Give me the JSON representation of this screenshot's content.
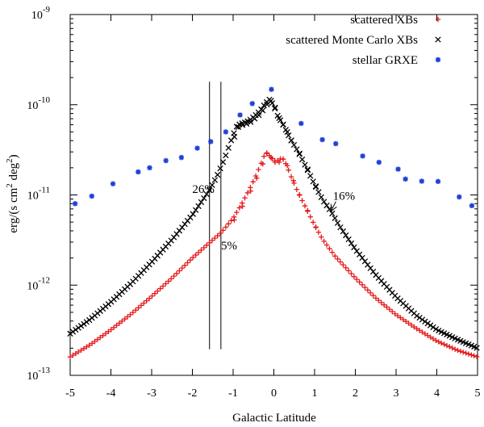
{
  "chart_data": {
    "type": "scatter",
    "title": "",
    "xlabel": "Galactic Latitude",
    "ylabel": "erg/(s cm^2 deg^2)",
    "ylabel_parts": {
      "main": "erg/(s cm",
      "sup1": "2",
      "mid": " deg",
      "sup2": "2",
      "end": ")"
    },
    "xlim": [
      -5,
      5
    ],
    "ylim": [
      1e-13,
      1e-09
    ],
    "yscale": "log",
    "x_ticks": [
      -5,
      -4,
      -3,
      -2,
      -1,
      0,
      1,
      2,
      3,
      4,
      5
    ],
    "x_tick_labels": [
      "-5",
      "-4",
      "-3",
      "-2",
      "-1",
      "0",
      "1",
      "2",
      "3",
      "4",
      "5"
    ],
    "y_ticks": [
      -13,
      -12,
      -11,
      -10,
      -9
    ],
    "y_tick_base": "10",
    "y_tick_exponents": [
      "-13",
      "-12",
      "-11",
      "-10",
      "-9"
    ],
    "legend_position": "top-right",
    "series": [
      {
        "name": "scattered XBs",
        "marker": "plus",
        "color": "#e41a1c",
        "x": [
          -5.0,
          -4.5,
          -4.0,
          -3.5,
          -3.0,
          -2.5,
          -2.0,
          -1.6,
          -1.3,
          -1.0,
          -0.8,
          -0.6,
          -0.45,
          -0.3,
          -0.2,
          -0.1,
          0.0,
          0.1,
          0.2,
          0.3,
          0.45,
          0.6,
          0.8,
          1.0,
          1.2,
          1.5,
          2.0,
          2.5,
          3.0,
          3.5,
          4.0,
          4.5,
          5.0
        ],
        "values": [
          1.6e-13,
          2.2e-13,
          3.2e-13,
          4.8e-13,
          7.5e-13,
          1.2e-12,
          2e-12,
          2.9e-12,
          3.8e-12,
          5.5e-12,
          7.8e-12,
          1.15e-11,
          1.6e-11,
          2.3e-11,
          3e-11,
          2.7e-11,
          2.4e-11,
          2.4e-11,
          2.6e-11,
          2.2e-11,
          1.5e-11,
          1.05e-11,
          7e-12,
          4.6e-12,
          3.2e-12,
          2.1e-12,
          1.2e-12,
          7.2e-13,
          4.7e-13,
          3.3e-13,
          2.4e-13,
          1.9e-13,
          1.6e-13
        ]
      },
      {
        "name": "scattered Monte Carlo XBs",
        "marker": "cross",
        "color": "#000000",
        "x": [
          -5.0,
          -4.5,
          -4.0,
          -3.5,
          -3.0,
          -2.5,
          -2.0,
          -1.6,
          -1.4,
          -1.2,
          -1.0,
          -0.9,
          -0.8,
          -0.7,
          -0.6,
          -0.5,
          -0.4,
          -0.3,
          -0.2,
          -0.1,
          0.0,
          0.1,
          0.2,
          0.3,
          0.4,
          0.6,
          0.8,
          1.0,
          1.2,
          1.4,
          1.6,
          2.0,
          2.5,
          3.0,
          3.5,
          4.0,
          4.5,
          5.0
        ],
        "values": [
          2.9e-13,
          4.2e-13,
          6.5e-13,
          1.05e-12,
          1.8e-12,
          3.2e-12,
          6e-12,
          1.1e-11,
          1.6e-11,
          2.6e-11,
          4.6e-11,
          5.9e-11,
          6.2e-11,
          6.4e-11,
          6.7e-11,
          7.3e-11,
          8e-11,
          9e-11,
          1.05e-10,
          1.15e-10,
          9.7e-11,
          7.4e-11,
          6.3e-11,
          5.2e-11,
          4.2e-11,
          3e-11,
          2e-11,
          1.3e-11,
          8.8e-12,
          6.6e-12,
          4.6e-12,
          2.5e-12,
          1.3e-12,
          7.4e-13,
          4.6e-13,
          3.2e-13,
          2.5e-13,
          2e-13
        ]
      },
      {
        "name": "stellar GRXE",
        "marker": "star",
        "color": "#1f3fd6",
        "x": [
          -4.88,
          -4.47,
          -3.95,
          -3.33,
          -3.05,
          -2.65,
          -2.27,
          -1.88,
          -1.55,
          -1.18,
          -0.83,
          -0.53,
          -0.06,
          0.67,
          1.19,
          1.52,
          2.18,
          2.58,
          3.05,
          3.23,
          3.63,
          4.03,
          4.55,
          4.86
        ],
        "values": [
          8e-12,
          9.7e-12,
          1.33e-11,
          1.8e-11,
          2e-11,
          2.4e-11,
          2.6e-11,
          3.3e-11,
          3.9e-11,
          5e-11,
          7.7e-11,
          1.03e-10,
          1.48e-10,
          6.2e-11,
          4.1e-11,
          3.7e-11,
          2.7e-11,
          2.3e-11,
          1.93e-11,
          1.5e-11,
          1.42e-11,
          1.41e-11,
          9.5e-12,
          7.6e-12
        ]
      }
    ],
    "annotations": [
      {
        "text": "26%",
        "x": -1.73,
        "y": 1.05e-11
      },
      {
        "text": "5%",
        "x": -1.1,
        "y": 2.5e-12
      },
      {
        "text": "16%",
        "x": 1.72,
        "y": 8.8e-12
      }
    ],
    "annotation_arrow": {
      "from": [
        1.72,
        8.8e-12
      ],
      "to": [
        1.4,
        6.6e-12
      ]
    },
    "vertical_lines": [
      {
        "x": -1.58,
        "y_from": 1.95e-13,
        "y_to": 1.8e-10
      },
      {
        "x": -1.3,
        "y_from": 1.95e-13,
        "y_to": 1.8e-10
      }
    ]
  }
}
